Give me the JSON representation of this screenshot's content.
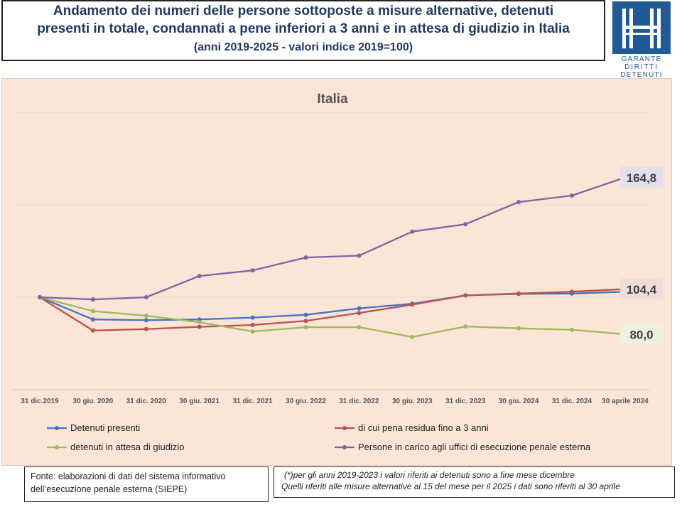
{
  "header": {
    "title_line1": "Andamento dei numeri delle persone sottoposte a misure alternative, detenuti",
    "title_line2": "presenti in totale, condannati a pene inferiori a 3 anni e in attesa di giudizio in Italia",
    "title_line3": "(anni 2019-2025  - valori indice 2019=100)"
  },
  "logo": {
    "line1": "GARANTE",
    "line2": "DIRITTI",
    "line3": "DETENUTI"
  },
  "footer": {
    "source_line1": "Fonte: elaborazioni di dati del sistema informativo",
    "source_line2": "dell’esecuzione penale esterna (SIEPE)",
    "note_line1": "(*)per gli anni 2019-2023  i valori riferiti ai detenuti sono a fine mese dicembre",
    "note_line2": "Quelli riferiti alle misure alternative al 15 del mese per il 2025  i dati sono riferiti al 30 aprile"
  },
  "chart_data": {
    "type": "line",
    "title": "Italia",
    "categories": [
      "31 dic.2019",
      "30 giu. 2020",
      "31 dic. 2020",
      "30 giu. 2021",
      "31 dic. 2021",
      "30 giu. 2022",
      "31 dic. 2022",
      "30 giu. 2023",
      "31 dic. 2023",
      "30 giu. 2024",
      "31 dic. 2024",
      "30 aprile 2024"
    ],
    "ylim": [
      50,
      200
    ],
    "grid": true,
    "legend_position": "bottom",
    "series": [
      {
        "name": "Detenuti presenti",
        "color": "#4472c4",
        "values": [
          100,
          88.0,
          87.6,
          88.0,
          89.0,
          90.5,
          94.0,
          96.5,
          101.0,
          101.8,
          102.0,
          103.0
        ]
      },
      {
        "name": "di cui pena residua fino a 3 anni",
        "color": "#c0504d",
        "values": [
          100,
          82.0,
          82.8,
          84.0,
          85.0,
          87.2,
          91.5,
          96.0,
          101.0,
          102.0,
          103.0,
          104.4
        ]
      },
      {
        "name": "detenuti in attesa di giudizio",
        "color": "#9bbb59",
        "values": [
          100,
          92.5,
          90.0,
          86.5,
          81.5,
          83.8,
          83.8,
          78.5,
          84.2,
          83.2,
          82.4,
          80.0
        ]
      },
      {
        "name": "Persone in carico agli uffici di esecuzione penale esterna",
        "color": "#8064a2",
        "values": [
          100,
          98.8,
          100,
          111.5,
          114.5,
          121.5,
          122.5,
          135.5,
          139.5,
          151.5,
          155.0,
          164.8
        ]
      }
    ],
    "end_labels": [
      {
        "text": "164,8",
        "series_index": 3,
        "bg": "#e4dfec"
      },
      {
        "text": "104,4",
        "series_index": 1,
        "bg": "#f2dcdb"
      },
      {
        "text": "80,0",
        "series_index": 2,
        "bg": "#ebf1de"
      }
    ]
  }
}
